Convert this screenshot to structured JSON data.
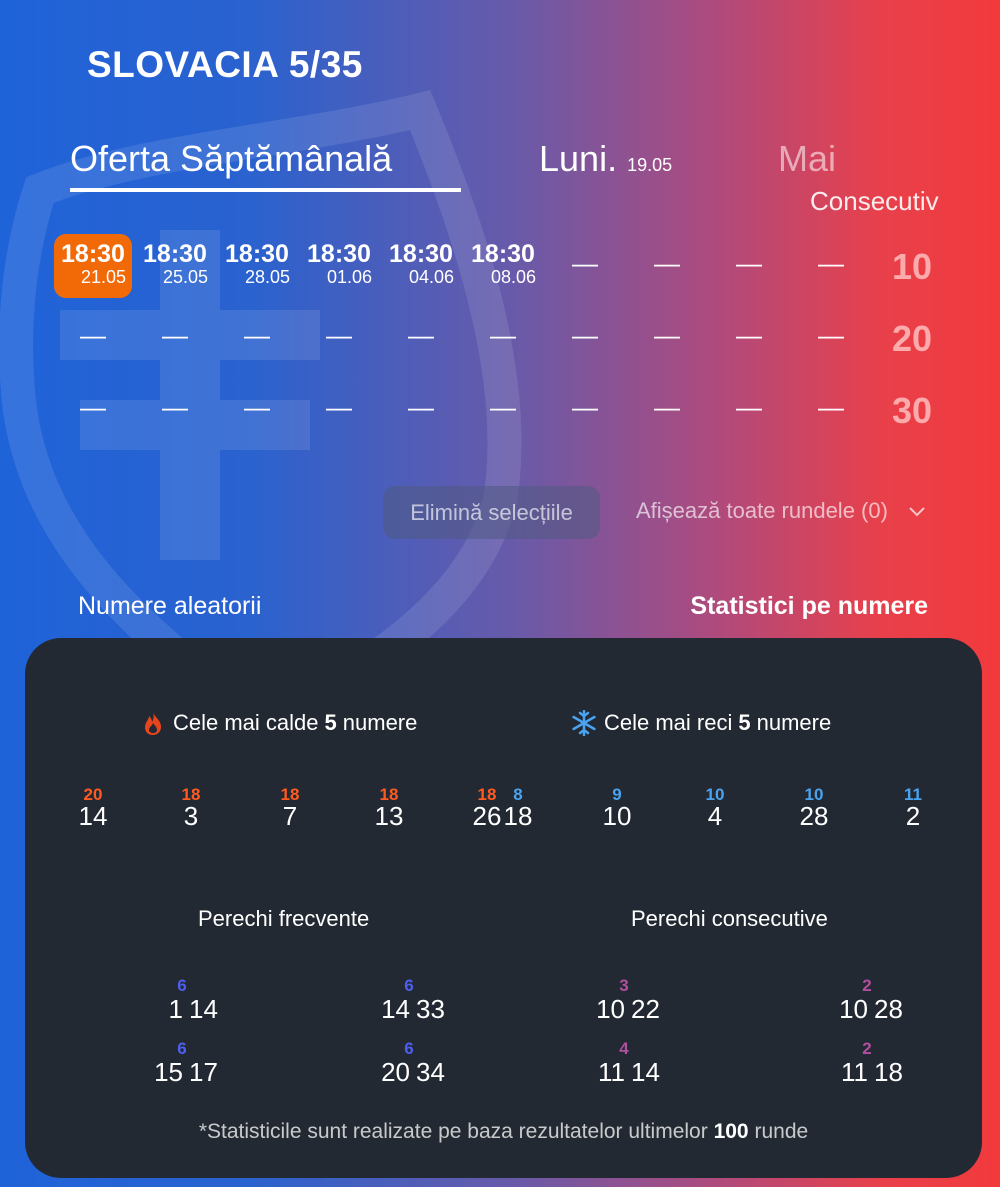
{
  "header": {
    "title": "SLOVACIA 5/35"
  },
  "tabs": {
    "weekly": "Oferta Săptămânală",
    "day": "Luni.",
    "day_date": "19.05",
    "next": "Mai",
    "consecutive_label": "Consecutiv"
  },
  "draws": [
    {
      "time": "18:30",
      "date": "21.05",
      "selected": true
    },
    {
      "time": "18:30",
      "date": "25.05"
    },
    {
      "time": "18:30",
      "date": "28.05"
    },
    {
      "time": "18:30",
      "date": "01.06"
    },
    {
      "time": "18:30",
      "date": "04.06"
    },
    {
      "time": "18:30",
      "date": "08.06"
    }
  ],
  "dash": "—",
  "consecutive_options": [
    "10",
    "20",
    "30"
  ],
  "actions": {
    "clear": "Elimină selecțiile",
    "show_all": "Afișează toate rundele (0)",
    "random": "Numere aleatorii",
    "stats": "Statistici pe numere"
  },
  "stats": {
    "hot_prefix": "Cele mai calde",
    "hot_count": "5",
    "hot_suffix": "numere",
    "cold_prefix": "Cele mai reci",
    "cold_count": "5",
    "cold_suffix": "numere",
    "hot": [
      {
        "count": "20",
        "number": "14"
      },
      {
        "count": "18",
        "number": "3"
      },
      {
        "count": "18",
        "number": "7"
      },
      {
        "count": "18",
        "number": "13"
      },
      {
        "count": "18",
        "number": "26"
      }
    ],
    "cold": [
      {
        "count": "8",
        "number": "18"
      },
      {
        "count": "9",
        "number": "10"
      },
      {
        "count": "10",
        "number": "4"
      },
      {
        "count": "10",
        "number": "28"
      },
      {
        "count": "11",
        "number": "2"
      }
    ],
    "freq_title": "Perechi frecvente",
    "cons_title": "Perechi consecutive",
    "freq_pairs": [
      {
        "a": "1",
        "b": "14",
        "count": "6"
      },
      {
        "a": "14",
        "b": "33",
        "count": "6"
      },
      {
        "a": "15",
        "b": "17",
        "count": "6"
      },
      {
        "a": "20",
        "b": "34",
        "count": "6"
      }
    ],
    "cons_pairs": [
      {
        "a": "10",
        "b": "22",
        "count": "3"
      },
      {
        "a": "10",
        "b": "28",
        "count": "2"
      },
      {
        "a": "11",
        "b": "14",
        "count": "4"
      },
      {
        "a": "11",
        "b": "18",
        "count": "2"
      }
    ],
    "footnote_prefix": "*Statisticile sunt realizate pe baza rezultatelor ultimelor",
    "footnote_count": "100",
    "footnote_suffix": "runde"
  },
  "colors": {
    "selected": "#f26a07",
    "hot": "#ff5a1f",
    "cold": "#4aa3f0",
    "panel": "#232932"
  }
}
